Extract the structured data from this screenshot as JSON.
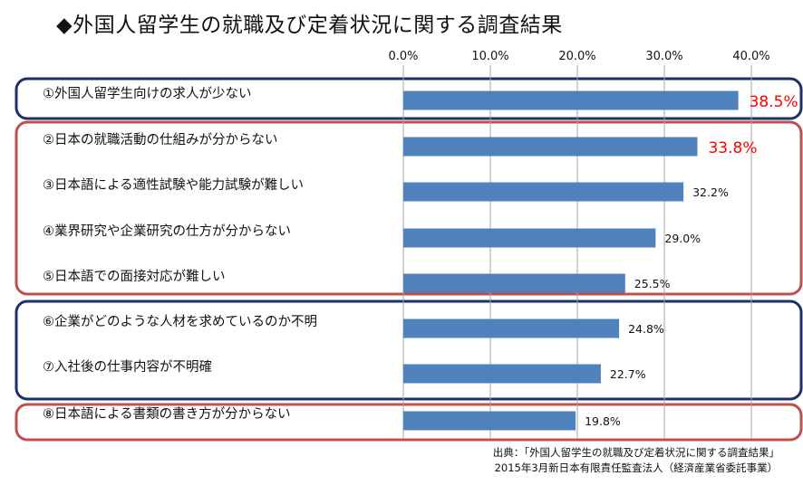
{
  "title": "◆外国人留学生の就職及び定着状況に関する調査結果",
  "source": {
    "line1": "出典：「外国人留学生の就職及び定着状況に関する調査結果」",
    "line2": "2015年3月新日本有限責任監査法人（経済産業省委託事業）"
  },
  "colors": {
    "bar": "#4f81bd",
    "highlight_label": "#ff0000",
    "frame_blue": "#1f2f6b",
    "frame_red": "#c0504d"
  },
  "chart_data": {
    "type": "bar",
    "orientation": "horizontal",
    "x_tick_labels": [
      "0.0%",
      "10.0%",
      "20.0%",
      "30.0%",
      "40.0%"
    ],
    "xlim": [
      0,
      40
    ],
    "grid": true,
    "categories": [
      "①外国人留学生向けの求人が少ない",
      "②日本の就職活動の仕組みが分からない",
      "③日本語による適性試験や能力試験が難しい",
      "④業界研究や企業研究の仕方が分からない",
      "⑤日本語での面接対応が難しい",
      "⑥企業がどのような人材を求めているのか不明",
      "⑦入社後の仕事内容が不明確",
      "⑧日本語による書類の書き方が分からない"
    ],
    "values": [
      38.5,
      33.8,
      32.2,
      29.0,
      25.5,
      24.8,
      22.7,
      19.8
    ],
    "data_labels": [
      "38.5%",
      "33.8%",
      "32.2%",
      "29.0%",
      "25.5%",
      "24.8%",
      "22.7%",
      "19.8%"
    ],
    "highlighted": [
      true,
      true,
      false,
      false,
      false,
      false,
      false,
      false
    ]
  }
}
